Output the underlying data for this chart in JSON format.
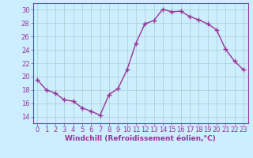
{
  "x": [
    0,
    1,
    2,
    3,
    4,
    5,
    6,
    7,
    8,
    9,
    10,
    11,
    12,
    13,
    14,
    15,
    16,
    17,
    18,
    19,
    20,
    21,
    22,
    23
  ],
  "y": [
    19.5,
    18.0,
    17.5,
    16.5,
    16.3,
    15.3,
    14.8,
    14.2,
    17.3,
    18.2,
    21.0,
    25.0,
    27.9,
    28.4,
    30.1,
    29.7,
    29.8,
    29.0,
    28.5,
    27.9,
    27.0,
    24.1,
    22.3,
    21.0
  ],
  "line_color": "#993399",
  "marker": "+",
  "marker_size": 5,
  "bg_color": "#cceeff",
  "grid_color": "#aacccc",
  "xlabel": "Windchill (Refroidissement éolien,°C)",
  "xlabel_color": "#993399",
  "tick_color": "#993399",
  "ylim": [
    13.0,
    31.0
  ],
  "yticks": [
    14,
    16,
    18,
    20,
    22,
    24,
    26,
    28,
    30
  ],
  "xlim": [
    -0.5,
    23.5
  ],
  "xticks": [
    0,
    1,
    2,
    3,
    4,
    5,
    6,
    7,
    8,
    9,
    10,
    11,
    12,
    13,
    14,
    15,
    16,
    17,
    18,
    19,
    20,
    21,
    22,
    23
  ],
  "spine_color": "#993399",
  "linewidth": 1.0,
  "tick_fontsize": 6,
  "xlabel_fontsize": 6.5
}
